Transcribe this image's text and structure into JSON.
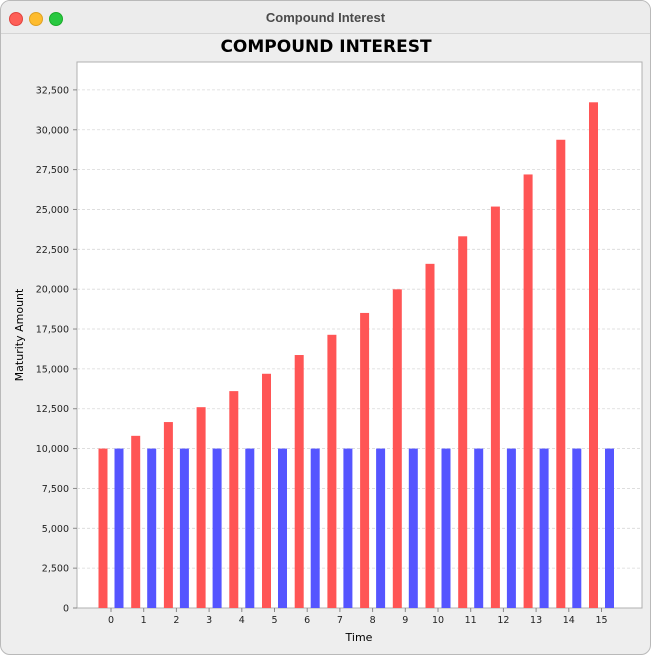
{
  "window": {
    "title": "Compound Interest"
  },
  "chart_data": {
    "type": "bar",
    "title": "COMPOUND INTEREST",
    "xlabel": "Time",
    "ylabel": "Maturity Amount",
    "categories": [
      "0",
      "1",
      "2",
      "3",
      "4",
      "5",
      "6",
      "7",
      "8",
      "9",
      "10",
      "11",
      "12",
      "13",
      "14",
      "15"
    ],
    "series": [
      {
        "color": "#ff5555",
        "values": [
          10000,
          10800,
          11664,
          12597,
          13605,
          14693,
          15869,
          17138,
          18509,
          19990,
          21589,
          23316,
          25182,
          27196,
          29372,
          31722
        ]
      },
      {
        "color": "#5555ff",
        "values": [
          10000,
          10000,
          10000,
          10000,
          10000,
          10000,
          10000,
          10000,
          10000,
          10000,
          10000,
          10000,
          10000,
          10000,
          10000,
          10000
        ]
      }
    ],
    "ylim": [
      0,
      34250
    ],
    "yticks": [
      0,
      2500,
      5000,
      7500,
      10000,
      12500,
      15000,
      17500,
      20000,
      22500,
      25000,
      27500,
      30000,
      32500
    ],
    "ytick_labels": [
      "0",
      "2,500",
      "5,000",
      "7,500",
      "10,000",
      "12,500",
      "15,000",
      "17,500",
      "20,000",
      "22,500",
      "25,000",
      "27,500",
      "30,000",
      "32,500"
    ],
    "grid": true
  }
}
